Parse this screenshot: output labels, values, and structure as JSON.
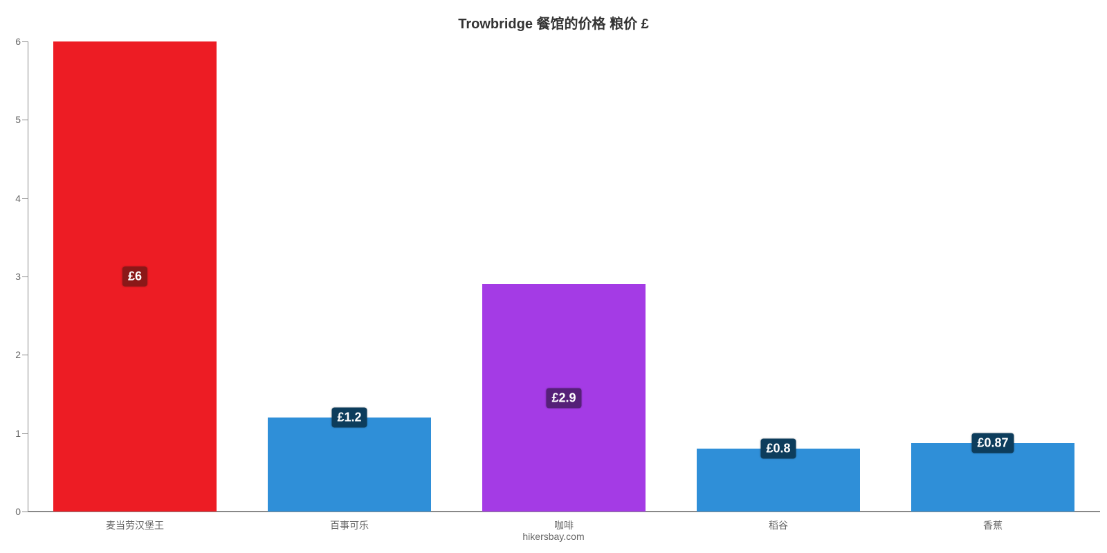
{
  "chart": {
    "type": "bar",
    "title": "Trowbridge 餐馆的价格 粮价 £",
    "title_fontsize": 20,
    "title_color": "#333333",
    "credit": "hikersbay.com",
    "background_color": "#ffffff",
    "axis_color": "#888888",
    "tick_label_color": "#666666",
    "tick_label_fontsize": 14,
    "ymin": 0,
    "ymax": 6,
    "ytick_step": 1,
    "yticks": [
      "0",
      "1",
      "2",
      "3",
      "4",
      "5",
      "6"
    ],
    "bar_width_pct": 76,
    "value_label_fontsize": 18,
    "value_label_text_color": "#ffffff",
    "categories": [
      {
        "label": "麦当劳汉堡王",
        "value": 6,
        "value_label": "£6",
        "bar_color": "#ed1c24",
        "label_bg": "#8a1818"
      },
      {
        "label": "百事可乐",
        "value": 1.2,
        "value_label": "£1.2",
        "bar_color": "#2f8fd8",
        "label_bg": "#0d3d5c",
        "label_offset_up": true
      },
      {
        "label": "咖啡",
        "value": 2.9,
        "value_label": "£2.9",
        "bar_color": "#a43be5",
        "label_bg": "#552078"
      },
      {
        "label": "稻谷",
        "value": 0.8,
        "value_label": "£0.8",
        "bar_color": "#2f8fd8",
        "label_bg": "#0d3d5c",
        "label_offset_up": true
      },
      {
        "label": "香蕉",
        "value": 0.87,
        "value_label": "£0.87",
        "bar_color": "#2f8fd8",
        "label_bg": "#0d3d5c",
        "label_offset_up": true
      }
    ]
  }
}
